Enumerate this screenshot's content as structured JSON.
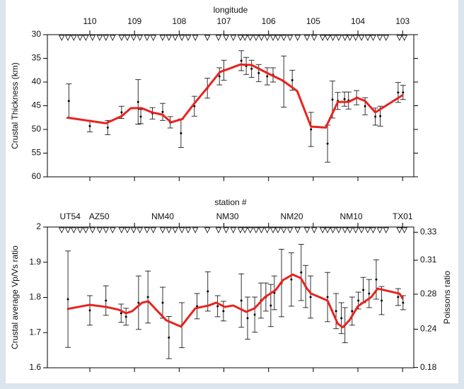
{
  "chart_data": [
    {
      "type": "errorbar",
      "x_label": "longitude",
      "y_label": "Crustal Thickness (km)",
      "xlim": [
        110.95,
        102.75
      ],
      "xticks": [
        110,
        109,
        108,
        107,
        106,
        105,
        104,
        103
      ],
      "ylim": [
        60,
        30
      ],
      "yticks": [
        30,
        35,
        40,
        45,
        50,
        55,
        60
      ],
      "stations": [
        110.63,
        110.49,
        110.36,
        110.22,
        110.09,
        109.94,
        109.78,
        109.64,
        109.49,
        109.29,
        109.16,
        109.02,
        108.88,
        108.72,
        108.58,
        108.37,
        108.23,
        108.09,
        107.94,
        107.8,
        107.64,
        107.37,
        107.12,
        106.95,
        106.79,
        106.63,
        106.53,
        106.41,
        106.28,
        106.16,
        106.03,
        105.9,
        105.79,
        105.66,
        105.52,
        105.35,
        105.14,
        104.98,
        104.79,
        104.68,
        104.56,
        104.43,
        104.29,
        104.18,
        104.05,
        103.92,
        103.78,
        103.66,
        103.51,
        103.37,
        103.07,
        102.96
      ],
      "points": {
        "x": [
          110.47,
          110.0,
          109.6,
          109.29,
          108.92,
          108.86,
          108.6,
          108.37,
          108.2,
          107.96,
          107.66,
          107.37,
          107.1,
          107.0,
          106.61,
          106.5,
          106.38,
          106.22,
          106.03,
          105.9,
          105.66,
          105.47,
          105.05,
          104.68,
          104.57,
          104.45,
          104.3,
          104.21,
          104.03,
          103.84,
          103.61,
          103.5,
          103.1,
          102.99
        ],
        "values": [
          44.0,
          49.3,
          49.6,
          46.4,
          44.2,
          47.3,
          46.6,
          46.3,
          48.5,
          50.8,
          45.1,
          41.3,
          38.8,
          37.5,
          35.5,
          36.6,
          37.2,
          38.1,
          38.8,
          38.5,
          39.9,
          39.6,
          50.0,
          53.0,
          43.7,
          44.0,
          43.6,
          43.9,
          43.3,
          45.1,
          47.3,
          47.2,
          42.2,
          42.2
        ],
        "errors": [
          3.6,
          1.2,
          1.5,
          1.3,
          4.7,
          1.5,
          1.2,
          1.8,
          1.2,
          3.0,
          2.1,
          2.1,
          1.8,
          2.1,
          2.1,
          1.8,
          1.8,
          1.8,
          1.8,
          1.5,
          5.4,
          2.1,
          3.6,
          3.9,
          3.9,
          1.8,
          1.5,
          1.8,
          1.5,
          1.8,
          1.8,
          2.1,
          2.1,
          1.5
        ]
      },
      "line": {
        "color": "#e8231f",
        "x": [
          110.51,
          109.64,
          109.29,
          109.08,
          108.84,
          108.61,
          108.37,
          108.18,
          107.93,
          107.66,
          107.37,
          107.09,
          106.63,
          106.38,
          106.03,
          105.68,
          105.36,
          105.05,
          104.72,
          104.45,
          104.21,
          104.02,
          103.84,
          103.61,
          102.99
        ],
        "values": [
          47.5,
          48.7,
          47.2,
          45.5,
          45.5,
          46.4,
          46.9,
          48.5,
          47.8,
          44.5,
          41.2,
          37.9,
          36.3,
          36.4,
          38.1,
          39.7,
          41.9,
          49.4,
          49.6,
          44.2,
          44.2,
          43.3,
          44.0,
          46.4,
          42.7
        ]
      }
    },
    {
      "type": "errorbar",
      "x_label": "station #",
      "y_label": "Crustal average Vp/Vs ratio",
      "y2_label": "Poissons ratio",
      "xlim": [
        110.95,
        102.75
      ],
      "xticks": [
        110,
        109,
        108,
        107,
        106,
        105,
        104,
        103
      ],
      "ylim": [
        1.6,
        2
      ],
      "yticks": [
        1.6,
        1.7,
        1.8,
        1.9,
        2
      ],
      "y2ticks": [
        0.33,
        0.31,
        0.28,
        0.24,
        0.18
      ],
      "station_labels": {
        "labels": [
          "UT54",
          "AZ50",
          "NM40",
          "NM30",
          "NM20",
          "NM10",
          "TX01"
        ],
        "x": [
          110.44,
          109.79,
          108.37,
          106.92,
          105.48,
          104.15,
          103.0
        ]
      },
      "stations": [
        110.63,
        110.49,
        110.36,
        110.22,
        110.09,
        109.94,
        109.78,
        109.64,
        109.49,
        109.29,
        109.16,
        109.02,
        108.88,
        108.72,
        108.58,
        108.37,
        108.23,
        108.09,
        107.94,
        107.8,
        107.64,
        107.37,
        107.12,
        106.95,
        106.79,
        106.63,
        106.53,
        106.41,
        106.28,
        106.16,
        106.03,
        105.9,
        105.79,
        105.66,
        105.52,
        105.35,
        105.14,
        104.98,
        104.79,
        104.68,
        104.56,
        104.43,
        104.29,
        104.18,
        104.05,
        103.92,
        103.78,
        103.66,
        103.51,
        103.37,
        103.07,
        102.96
      ],
      "points": {
        "x": [
          110.49,
          110.0,
          109.64,
          109.3,
          109.19,
          108.91,
          108.7,
          108.37,
          108.23,
          107.94,
          107.6,
          107.36,
          107.14,
          107.01,
          106.61,
          106.47,
          106.31,
          106.17,
          106.06,
          105.95,
          105.87,
          105.71,
          105.49,
          105.27,
          105.17,
          105.06,
          104.68,
          104.49,
          104.37,
          104.29,
          104.13,
          103.99,
          103.88,
          103.75,
          103.59,
          103.47,
          103.1,
          102.99
        ],
        "values": [
          1.795,
          1.763,
          1.791,
          1.755,
          1.745,
          1.785,
          1.801,
          1.785,
          1.686,
          1.721,
          1.775,
          1.817,
          1.775,
          1.761,
          1.791,
          1.741,
          1.751,
          1.791,
          1.801,
          1.777,
          1.813,
          1.841,
          1.851,
          1.871,
          1.831,
          1.801,
          1.801,
          1.761,
          1.741,
          1.721,
          1.761,
          1.791,
          1.821,
          1.811,
          1.851,
          1.791,
          1.801,
          1.785
        ],
        "errors": [
          0.137,
          0.042,
          0.042,
          0.026,
          0.024,
          0.076,
          0.074,
          0.044,
          0.06,
          0.064,
          0.036,
          0.056,
          0.03,
          0.028,
          0.076,
          0.06,
          0.05,
          0.05,
          0.04,
          0.06,
          0.048,
          0.096,
          0.076,
          0.08,
          0.06,
          0.06,
          0.07,
          0.05,
          0.044,
          0.05,
          0.04,
          0.024,
          0.036,
          0.04,
          0.056,
          0.04,
          0.024,
          0.02
        ]
      },
      "line": {
        "color": "#e8231f",
        "x": [
          110.51,
          110.0,
          109.64,
          109.35,
          109.19,
          109.05,
          108.83,
          108.69,
          108.53,
          108.29,
          107.96,
          107.64,
          107.34,
          107.17,
          106.98,
          106.79,
          106.5,
          106.31,
          106.08,
          105.84,
          105.68,
          105.46,
          105.28,
          105.14,
          105.05,
          104.68,
          104.45,
          104.34,
          104.19,
          104.0,
          103.7,
          103.56,
          103.07,
          102.99
        ],
        "values": [
          1.767,
          1.779,
          1.773,
          1.765,
          1.755,
          1.761,
          1.785,
          1.789,
          1.767,
          1.735,
          1.717,
          1.769,
          1.777,
          1.785,
          1.773,
          1.777,
          1.759,
          1.769,
          1.801,
          1.821,
          1.849,
          1.865,
          1.855,
          1.825,
          1.811,
          1.791,
          1.725,
          1.715,
          1.735,
          1.775,
          1.801,
          1.825,
          1.811,
          1.795
        ]
      }
    }
  ]
}
